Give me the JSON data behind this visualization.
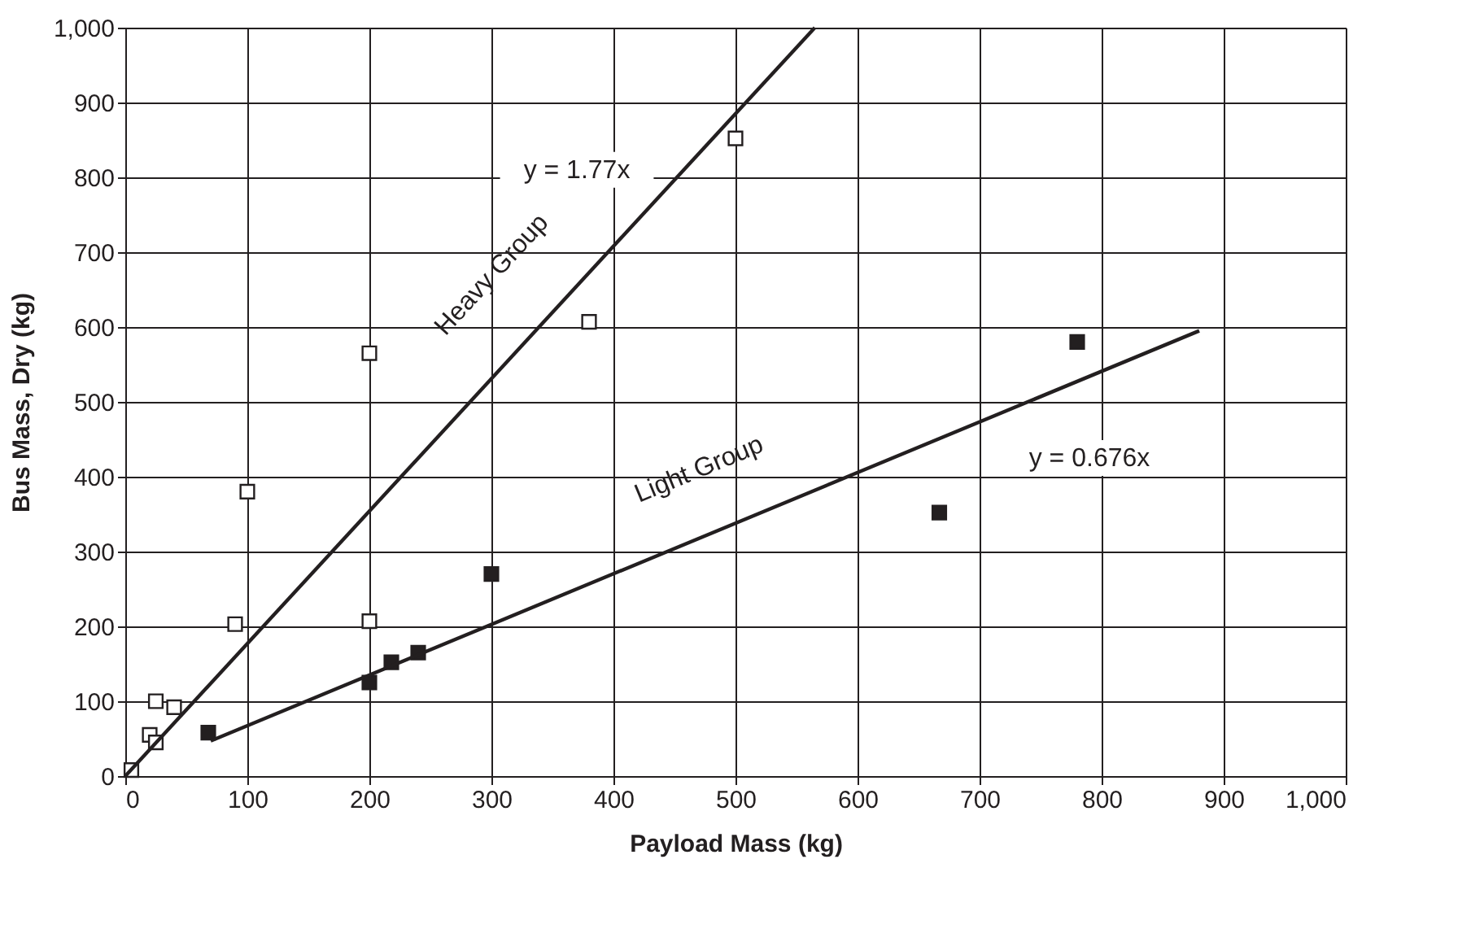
{
  "chart_data": {
    "type": "scatter",
    "xlabel": "Payload Mass (kg)",
    "ylabel": "Bus Mass, Dry (kg)",
    "xlim": [
      0,
      1000
    ],
    "ylim": [
      0,
      1000
    ],
    "xticks": [
      0,
      100,
      200,
      300,
      400,
      500,
      600,
      700,
      800,
      900,
      {
        "value": 1000,
        "label": "1,000"
      }
    ],
    "yticks": [
      0,
      100,
      200,
      300,
      400,
      500,
      600,
      700,
      800,
      900,
      {
        "value": 1000,
        "label": "1,000"
      }
    ],
    "grid": true,
    "series": [
      {
        "marker": "square",
        "color": "#ffffff",
        "x": [
          5,
          20,
          25,
          25,
          40,
          90,
          100,
          200,
          200,
          380,
          500
        ],
        "values": [
          8,
          55,
          45,
          100,
          92,
          203,
          380,
          565,
          207,
          607,
          852
        ]
      },
      {
        "marker": "square",
        "color": "#231f20",
        "x": [
          68,
          200,
          218,
          240,
          300,
          667,
          780
        ],
        "values": [
          58,
          125,
          152,
          165,
          270,
          352,
          580
        ]
      },
      {
        "type": "line",
        "color": "#231f20",
        "x": [
          0,
          565
        ],
        "values": [
          0,
          1000
        ]
      },
      {
        "type": "line",
        "color": "#231f20",
        "x": [
          70,
          880
        ],
        "values": [
          47,
          595
        ]
      }
    ],
    "annotations": [
      "y = 1.77x",
      "Heavy Group",
      "Light Group",
      "y = 0.676x"
    ]
  }
}
